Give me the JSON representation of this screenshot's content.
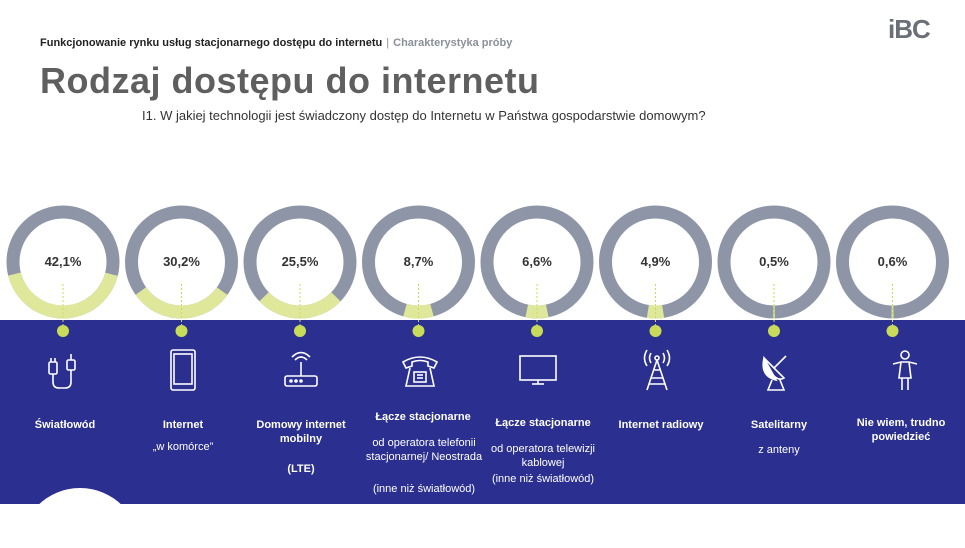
{
  "header": {
    "left": "Funkcjonowanie rynku usług stacjonarnego dostępu do internetu",
    "sep": "|",
    "right": "Charakterystyka próby"
  },
  "logo": "iBC",
  "title": "Rodzaj dostępu do internetu",
  "question": "I1. W jakiej technologii jest świadczony dostęp do Internetu w Państwa gospodarstwie domowym?",
  "colors": {
    "ring_bg": "#8e95a6",
    "ring_fill": "#dfe89a",
    "band": "#2b2f8f",
    "dot": "#c9dc5a"
  },
  "chart_data": {
    "type": "donut",
    "categories": [
      "Światłowód",
      "Internet",
      "Domowy internet mobilny",
      "Łącze stacjonarne",
      "Łącze stacjonarne",
      "Internet radiowy",
      "Satelitarny",
      "Nie wiem, trudno powiedzieć"
    ],
    "values": [
      42.1,
      30.2,
      25.5,
      8.7,
      6.6,
      4.9,
      0.5,
      0.6
    ],
    "labels": [
      "42,1%",
      "30,2%",
      "25,5%",
      "8,7%",
      "6,6%",
      "4,9%",
      "0,5%",
      "0,6%"
    ]
  },
  "items": [
    {
      "label": "Światłowód",
      "icon": "cable-icon"
    },
    {
      "label": "Internet",
      "sub": "„w komórce”",
      "icon": "smartphone-icon"
    },
    {
      "label": "Domowy internet mobilny",
      "sub": "(LTE)",
      "icon": "router-icon"
    },
    {
      "label": "Łącze stacjonarne",
      "sub": "od operatora telefonii stacjonarnej/ Neostrada",
      "note": "(inne niż światłowód)",
      "icon": "telephone-icon"
    },
    {
      "label": "Łącze stacjonarne",
      "sub": "od operatora telewizji kablowej",
      "note": "(inne niż światłowód)",
      "icon": "tv-icon"
    },
    {
      "label": "Internet radiowy",
      "icon": "radio-tower-icon"
    },
    {
      "label": "Satelitarny",
      "sub": "z anteny",
      "icon": "satellite-dish-icon"
    },
    {
      "label": "Nie wiem, trudno powiedzieć",
      "icon": "person-icon"
    }
  ]
}
